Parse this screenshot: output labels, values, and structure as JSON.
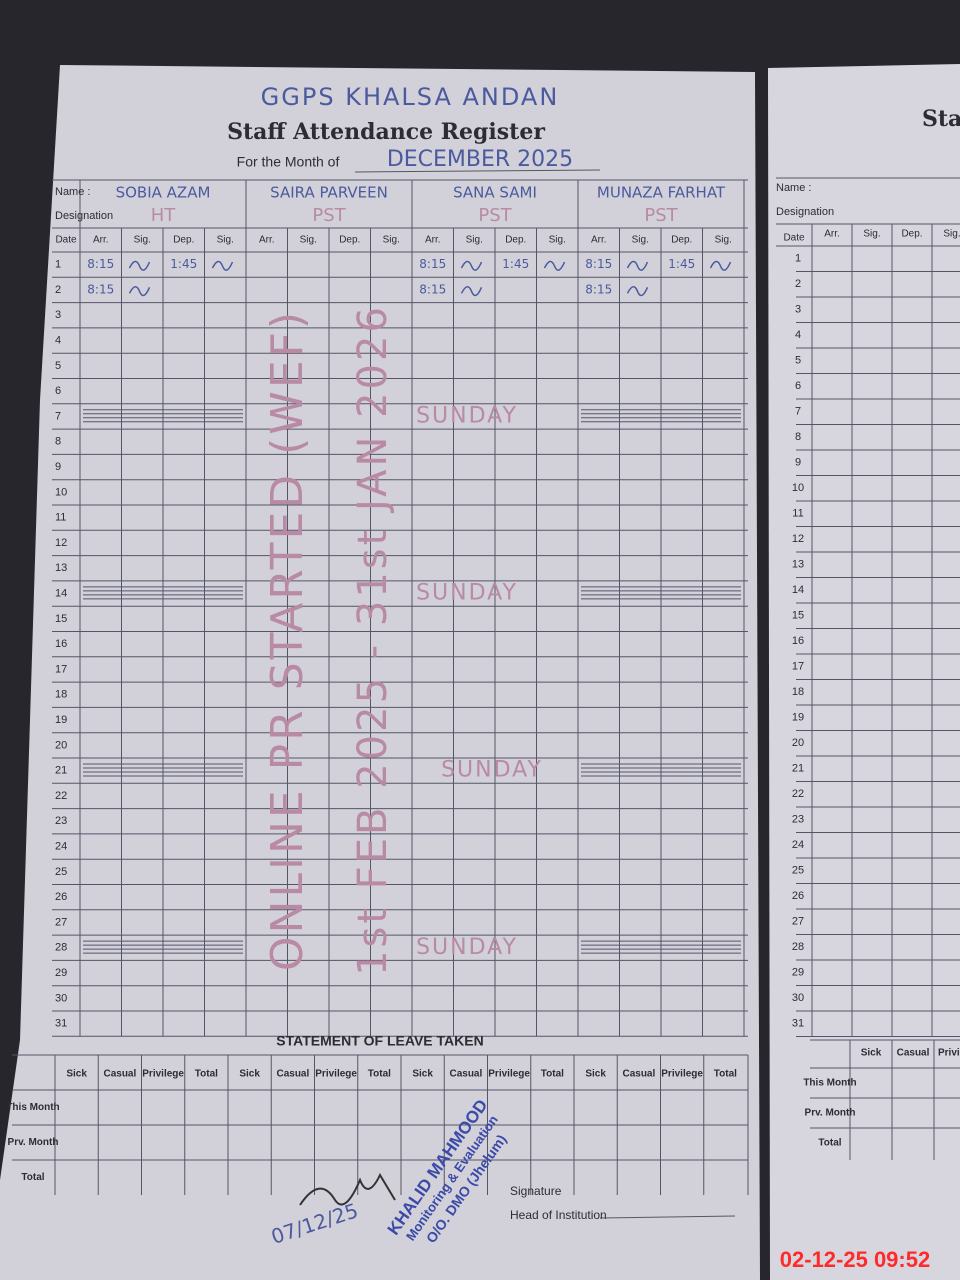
{
  "left_page": {
    "school": "GGPS KHALSA ANDAN",
    "title": "Staff Attendance Register",
    "month_label": "For the Month of",
    "month": "DECEMBER 2025",
    "name_label": "Name :",
    "designation_label": "Designation",
    "date_header": "Date",
    "column_headers": [
      "Arr.",
      "Sig.",
      "Dep.",
      "Sig."
    ],
    "staff": [
      {
        "name": "SOBIA AZAM",
        "designation": "HT",
        "arrivals": [
          "8:15",
          "8:15"
        ],
        "departures": [
          "1:45"
        ]
      },
      {
        "name": "SAIRA PARVEEN",
        "designation": "PST",
        "arrivals": [],
        "departures": []
      },
      {
        "name": "SANA SAMI",
        "designation": "PST",
        "arrivals": [
          "8:15",
          "8:15"
        ],
        "departures": [
          "1:45"
        ]
      },
      {
        "name": "MUNAZA FARHAT",
        "designation": "PST",
        "arrivals": [
          "8:15",
          "8:15"
        ],
        "departures": [
          "1:45"
        ]
      }
    ],
    "dates": [
      1,
      2,
      3,
      4,
      5,
      6,
      7,
      8,
      9,
      10,
      11,
      12,
      13,
      14,
      15,
      16,
      17,
      18,
      19,
      20,
      21,
      22,
      23,
      24,
      25,
      26,
      27,
      28,
      29,
      30,
      31
    ],
    "sunday_notes": [
      "SUNDAY",
      "SUNDAY",
      "SUNDAY",
      "SUNDAY"
    ],
    "note": [
      "ONLINE PR STARTED (WEF)",
      "1st FEB 2025 - 31st JAN 2026"
    ],
    "leave_title": "STATEMENT OF LEAVE TAKEN",
    "leave_columns": [
      "Sick",
      "Casual",
      "Privilege",
      "Total"
    ],
    "leave_rows": [
      "This Month",
      "Prv. Month",
      "Total"
    ],
    "signature_label": "Signature",
    "head_label": "Head of Institution",
    "stamp": [
      "KHALID MAHMOOD",
      "Monitoring & Evaluation",
      "O/O. DMO (Jhelum)"
    ],
    "signed_date": "07/12/25"
  },
  "right_page": {
    "title": "Sta",
    "name_label": "Name :",
    "designation_label": "Designation",
    "date_header": "Date",
    "column_headers": [
      "Arr.",
      "Sig.",
      "Dep.",
      "Sig."
    ],
    "dates": [
      1,
      2,
      3,
      4,
      5,
      6,
      7,
      8,
      9,
      10,
      11,
      12,
      13,
      14,
      15,
      16,
      17,
      18,
      19,
      20,
      21,
      22,
      23,
      24,
      25,
      26,
      27,
      28,
      29,
      30,
      31
    ],
    "leave_columns": [
      "Sick",
      "Casual",
      "Privilege"
    ],
    "leave_rows": [
      "This Month",
      "Prv. Month",
      "Total"
    ]
  },
  "timestamp": "02-12-25 09:52"
}
